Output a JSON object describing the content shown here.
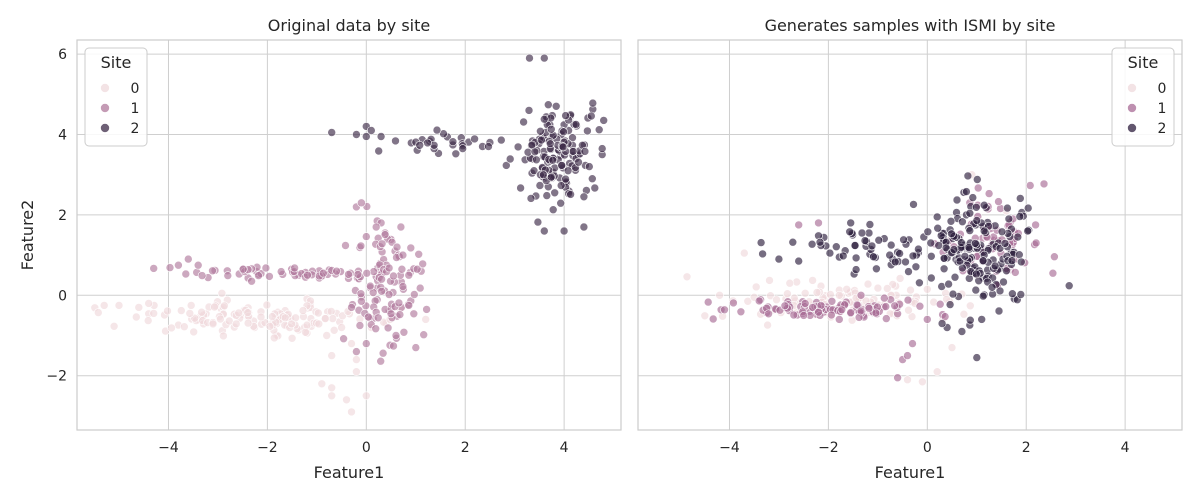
{
  "chart_data": [
    {
      "type": "scatter",
      "title": "Original data by site",
      "xlabel": "Feature1",
      "ylabel": "Feature2",
      "xlim": [
        -5.85,
        5.15
      ],
      "ylim": [
        -3.35,
        6.35
      ],
      "xticks": [
        -4,
        -2,
        0,
        2,
        4
      ],
      "yticks": [
        -2,
        0,
        2,
        4,
        6
      ],
      "grid": true,
      "legend": {
        "title": "Site",
        "position": "top-left"
      },
      "series": [
        {
          "name": "0",
          "color": "#efd9dc",
          "cluster": {
            "cx": -2.2,
            "cy": -0.55,
            "sx": 1.3,
            "sy": 0.2,
            "n": 140
          },
          "extra": [
            [
              -5.3,
              -0.25
            ],
            [
              -5.0,
              -0.25
            ],
            [
              -4.6,
              -0.3
            ],
            [
              -4.4,
              -0.2
            ],
            [
              -4.3,
              -0.45
            ],
            [
              -0.9,
              -2.2
            ],
            [
              -0.7,
              -2.3
            ],
            [
              -0.4,
              -2.6
            ],
            [
              -0.3,
              -2.9
            ],
            [
              0.0,
              -2.5
            ],
            [
              -0.2,
              -1.9
            ],
            [
              -0.7,
              -1.5
            ],
            [
              -0.8,
              -1.0
            ],
            [
              -0.3,
              -1.2
            ],
            [
              0.1,
              -0.8
            ],
            [
              -0.7,
              -2.5
            ],
            [
              -0.2,
              -1.6
            ],
            [
              -0.5,
              -0.8
            ]
          ],
          "values": []
        },
        {
          "name": "1",
          "color": "#b07a9c",
          "cluster": {
            "cx": -1.8,
            "cy": 0.55,
            "sx": 1.0,
            "sy": 0.1,
            "n": 60
          },
          "cluster2": {
            "cx": 0.4,
            "cy": 0.2,
            "sx": 0.35,
            "sy": 0.7,
            "n": 110
          },
          "extra": [
            [
              -3.8,
              0.75
            ],
            [
              -3.6,
              0.9
            ],
            [
              -3.4,
              0.75
            ],
            [
              -0.2,
              2.2
            ],
            [
              -0.1,
              2.3
            ],
            [
              0.3,
              1.8
            ],
            [
              0.2,
              1.7
            ],
            [
              0.7,
              1.7
            ],
            [
              0.0,
              -1.2
            ],
            [
              1.0,
              -1.3
            ],
            [
              -0.6,
              0.6
            ],
            [
              0.6,
              -1.0
            ],
            [
              -0.2,
              -1.4
            ]
          ],
          "values": []
        },
        {
          "name": "2",
          "color": "#3e2b48",
          "cluster": {
            "cx": 3.9,
            "cy": 3.5,
            "sx": 0.4,
            "sy": 0.65,
            "n": 150
          },
          "cluster2": {
            "cx": 1.8,
            "cy": 3.8,
            "sx": 0.6,
            "sy": 0.12,
            "n": 30
          },
          "extra": [
            [
              -0.7,
              4.05
            ],
            [
              -0.2,
              4.0
            ],
            [
              0.0,
              4.2
            ],
            [
              0.1,
              4.1
            ],
            [
              0.3,
              3.95
            ],
            [
              0.0,
              3.95
            ],
            [
              3.6,
              5.9
            ],
            [
              3.3,
              5.9
            ],
            [
              4.8,
              4.35
            ],
            [
              3.6,
              1.6
            ],
            [
              4.0,
              1.6
            ],
            [
              4.4,
              1.7
            ]
          ],
          "values": []
        }
      ]
    },
    {
      "type": "scatter",
      "title": "Generates samples with ISMI by site",
      "xlabel": "Feature1",
      "ylabel": "",
      "xlim": [
        -5.85,
        5.15
      ],
      "ylim": [
        -3.35,
        6.35
      ],
      "xticks": [
        -4,
        -2,
        0,
        2,
        4
      ],
      "yticks": [
        -2,
        0,
        2,
        4,
        6
      ],
      "grid": true,
      "legend": {
        "title": "Site",
        "position": "top-right"
      },
      "series": [
        {
          "name": "0",
          "color": "#efd9dc",
          "cluster": {
            "cx": -1.8,
            "cy": -0.2,
            "sx": 1.1,
            "sy": 0.25,
            "n": 110
          },
          "extra": [
            [
              -4.2,
              0.0
            ],
            [
              -3.7,
              1.05
            ],
            [
              -3.5,
              -0.05
            ],
            [
              -0.1,
              -2.15
            ],
            [
              -0.4,
              -2.1
            ],
            [
              0.2,
              -1.9
            ],
            [
              0.5,
              -1.3
            ],
            [
              1.0,
              0.5
            ],
            [
              1.6,
              2.1
            ],
            [
              0.9,
              3.0
            ]
          ],
          "values": []
        },
        {
          "name": "1",
          "color": "#a86b95",
          "cluster": {
            "cx": -1.8,
            "cy": -0.35,
            "sx": 1.1,
            "sy": 0.12,
            "n": 100
          },
          "cluster2": {
            "cx": 1.3,
            "cy": 1.4,
            "sx": 0.5,
            "sy": 0.6,
            "n": 70
          },
          "extra": [
            [
              -2.6,
              1.75
            ],
            [
              -2.2,
              1.8
            ],
            [
              -0.5,
              -1.6
            ],
            [
              -0.6,
              -2.05
            ],
            [
              -0.4,
              -1.5
            ],
            [
              2.2,
              1.3
            ],
            [
              -0.3,
              -1.2
            ],
            [
              0.0,
              -0.6
            ]
          ],
          "values": []
        },
        {
          "name": "2",
          "color": "#2d1e3e",
          "cluster": {
            "cx": 1.1,
            "cy": 1.05,
            "sx": 0.5,
            "sy": 0.8,
            "n": 160
          },
          "cluster2": {
            "cx": -0.9,
            "cy": 1.1,
            "sx": 1.0,
            "sy": 0.3,
            "n": 70
          },
          "extra": [
            [
              -3.0,
              0.9
            ],
            [
              -2.6,
              0.85
            ],
            [
              0.2,
              1.95
            ],
            [
              1.0,
              -1.55
            ],
            [
              0.7,
              -0.9
            ],
            [
              0.4,
              -0.8
            ],
            [
              0.3,
              -0.7
            ]
          ],
          "values": []
        }
      ]
    }
  ]
}
